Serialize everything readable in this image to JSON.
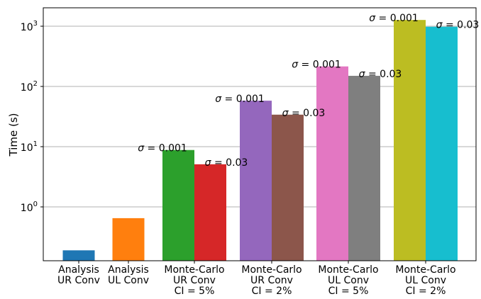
{
  "chart_data": {
    "type": "bar",
    "ylabel": "Time (s)",
    "yscale": "log",
    "grid": {
      "y_major": true,
      "color": "#b0b0b0"
    },
    "y_ticks": [
      {
        "value": 1,
        "base": "10",
        "exp": "0"
      },
      {
        "value": 10,
        "base": "10",
        "exp": "1"
      },
      {
        "value": 100,
        "base": "10",
        "exp": "2"
      },
      {
        "value": 1000,
        "base": "10",
        "exp": "3"
      }
    ],
    "categories": [
      {
        "lines": [
          "Analysis",
          "UR Conv"
        ]
      },
      {
        "lines": [
          "Analysis",
          "UL Conv"
        ]
      },
      {
        "lines": [
          "Monte-Carlo",
          "UR Conv",
          "CI = 5%"
        ]
      },
      {
        "lines": [
          "Monte-Carlo",
          "UR Conv",
          "CI = 2%"
        ]
      },
      {
        "lines": [
          "Monte-Carlo",
          "UL Conv",
          "CI = 5%"
        ]
      },
      {
        "lines": [
          "Monte-Carlo",
          "UL Conv",
          "CI = 2%"
        ]
      }
    ],
    "bars": [
      {
        "group": 0,
        "slot": "single",
        "value": 0.19,
        "color": "#1f77b4"
      },
      {
        "group": 1,
        "slot": "single",
        "value": 0.65,
        "color": "#ff7f0e"
      },
      {
        "group": 2,
        "slot": "left",
        "value": 8.8,
        "color": "#2ca02c",
        "sigma": "0.001"
      },
      {
        "group": 2,
        "slot": "right",
        "value": 5.1,
        "color": "#d62728",
        "sigma": "0.03"
      },
      {
        "group": 3,
        "slot": "left",
        "value": 58,
        "color": "#9467bd",
        "sigma": "0.001"
      },
      {
        "group": 3,
        "slot": "right",
        "value": 34,
        "color": "#8c564b",
        "sigma": "0.03"
      },
      {
        "group": 4,
        "slot": "left",
        "value": 215,
        "color": "#e377c2",
        "sigma": "0.001"
      },
      {
        "group": 4,
        "slot": "right",
        "value": 150,
        "color": "#7f7f7f",
        "sigma": "0.03"
      },
      {
        "group": 5,
        "slot": "left",
        "value": 1270,
        "color": "#bcbd22",
        "sigma": "0.001"
      },
      {
        "group": 5,
        "slot": "right",
        "value": 980,
        "color": "#17becf",
        "sigma": "0.03"
      }
    ],
    "annotation_symbol": "σ",
    "annotation_equals": " = "
  }
}
